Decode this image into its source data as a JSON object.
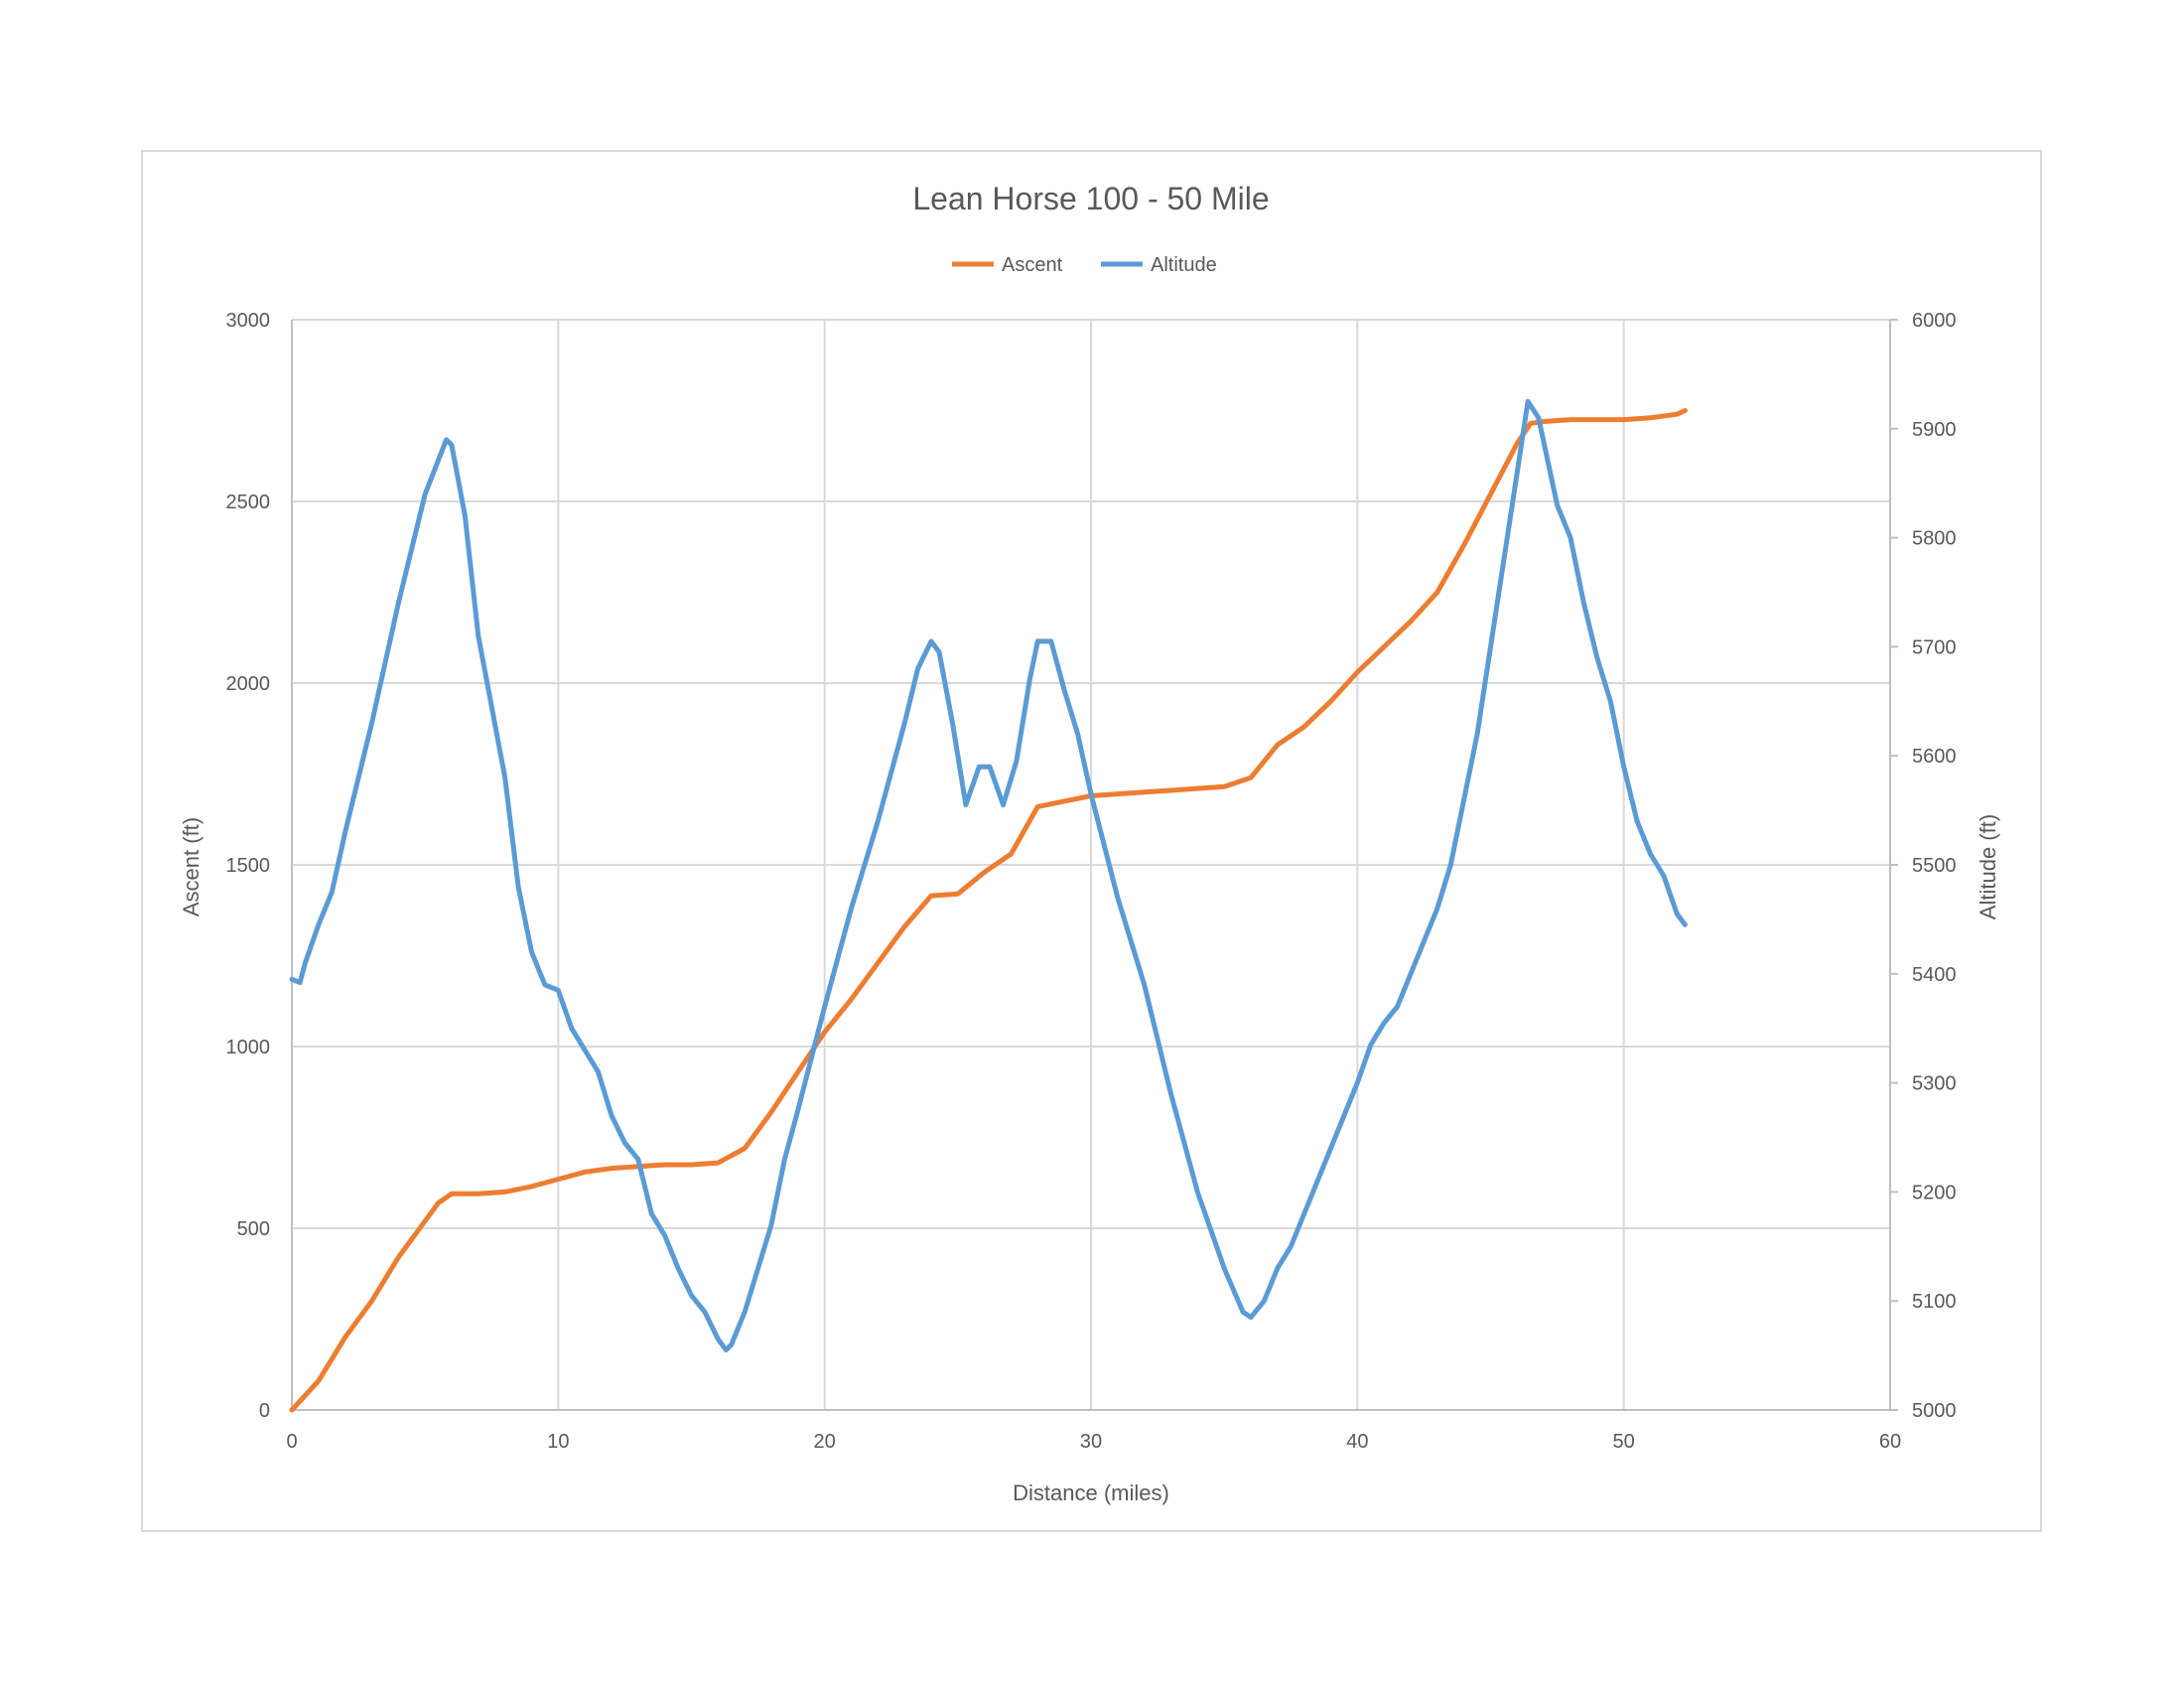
{
  "chart_data": {
    "type": "line",
    "title": "Lean Horse 100 - 50 Mile",
    "xlabel": "Distance (miles)",
    "ylabel_left": "Ascent (ft)",
    "ylabel_right": "Altitude (ft)",
    "xlim": [
      0,
      60
    ],
    "ylim_left": [
      0,
      3000
    ],
    "ylim_right": [
      5000,
      6000
    ],
    "x_ticks": [
      "0",
      "10",
      "20",
      "30",
      "40",
      "50",
      "60"
    ],
    "y_left_ticks": [
      "0",
      "500",
      "1000",
      "1500",
      "2000",
      "2500",
      "3000"
    ],
    "y_right_ticks": [
      "5000",
      "5100",
      "5200",
      "5300",
      "5400",
      "5500",
      "5600",
      "5700",
      "5800",
      "5900",
      "6000"
    ],
    "grid": true,
    "legend_position": "top-center",
    "series": [
      {
        "name": "Ascent",
        "axis": "left",
        "color": "#ed7d31",
        "points": [
          [
            0,
            0
          ],
          [
            0.5,
            40
          ],
          [
            1,
            80
          ],
          [
            2,
            200
          ],
          [
            3,
            300
          ],
          [
            4,
            420
          ],
          [
            5,
            520
          ],
          [
            5.5,
            570
          ],
          [
            6,
            595
          ],
          [
            7,
            595
          ],
          [
            8,
            600
          ],
          [
            9,
            615
          ],
          [
            10,
            635
          ],
          [
            11,
            655
          ],
          [
            12,
            665
          ],
          [
            13,
            670
          ],
          [
            14,
            675
          ],
          [
            15,
            675
          ],
          [
            16,
            680
          ],
          [
            17,
            720
          ],
          [
            18,
            820
          ],
          [
            19,
            930
          ],
          [
            20,
            1040
          ],
          [
            21,
            1130
          ],
          [
            22,
            1230
          ],
          [
            23,
            1330
          ],
          [
            24,
            1415
          ],
          [
            25,
            1420
          ],
          [
            26,
            1480
          ],
          [
            27,
            1530
          ],
          [
            28,
            1660
          ],
          [
            29,
            1675
          ],
          [
            30,
            1690
          ],
          [
            31,
            1695
          ],
          [
            32,
            1700
          ],
          [
            33,
            1705
          ],
          [
            34,
            1710
          ],
          [
            35,
            1715
          ],
          [
            36,
            1740
          ],
          [
            37,
            1830
          ],
          [
            38,
            1880
          ],
          [
            39,
            1950
          ],
          [
            40,
            2030
          ],
          [
            41,
            2100
          ],
          [
            42,
            2170
          ],
          [
            43,
            2250
          ],
          [
            44,
            2380
          ],
          [
            45,
            2520
          ],
          [
            46,
            2660
          ],
          [
            46.5,
            2715
          ],
          [
            47,
            2720
          ],
          [
            48,
            2725
          ],
          [
            49,
            2725
          ],
          [
            50,
            2725
          ],
          [
            51,
            2730
          ],
          [
            52,
            2740
          ],
          [
            52.3,
            2750
          ]
        ]
      },
      {
        "name": "Altitude",
        "axis": "right",
        "color": "#5b9bd5",
        "points": [
          [
            0,
            5395
          ],
          [
            0.3,
            5392
          ],
          [
            0.5,
            5410
          ],
          [
            1,
            5445
          ],
          [
            1.5,
            5475
          ],
          [
            2,
            5530
          ],
          [
            3,
            5630
          ],
          [
            4,
            5740
          ],
          [
            5,
            5840
          ],
          [
            5.8,
            5890
          ],
          [
            6,
            5885
          ],
          [
            6.5,
            5820
          ],
          [
            7,
            5710
          ],
          [
            8,
            5580
          ],
          [
            8.5,
            5480
          ],
          [
            9,
            5420
          ],
          [
            9.5,
            5390
          ],
          [
            10,
            5385
          ],
          [
            10.5,
            5350
          ],
          [
            11,
            5330
          ],
          [
            11.5,
            5310
          ],
          [
            12,
            5270
          ],
          [
            12.5,
            5245
          ],
          [
            13,
            5230
          ],
          [
            13.5,
            5180
          ],
          [
            14,
            5160
          ],
          [
            14.5,
            5130
          ],
          [
            15,
            5105
          ],
          [
            15.5,
            5090
          ],
          [
            16,
            5065
          ],
          [
            16.3,
            5055
          ],
          [
            16.5,
            5060
          ],
          [
            17,
            5090
          ],
          [
            17.5,
            5130
          ],
          [
            18,
            5170
          ],
          [
            18.5,
            5230
          ],
          [
            19,
            5275
          ],
          [
            20,
            5370
          ],
          [
            21,
            5460
          ],
          [
            22,
            5540
          ],
          [
            23,
            5630
          ],
          [
            23.5,
            5680
          ],
          [
            24,
            5705
          ],
          [
            24.3,
            5695
          ],
          [
            24.8,
            5630
          ],
          [
            25.3,
            5555
          ],
          [
            25.8,
            5590
          ],
          [
            26.2,
            5590
          ],
          [
            26.7,
            5555
          ],
          [
            27.2,
            5595
          ],
          [
            27.7,
            5670
          ],
          [
            28,
            5705
          ],
          [
            28.5,
            5705
          ],
          [
            29,
            5660
          ],
          [
            29.5,
            5620
          ],
          [
            30,
            5565
          ],
          [
            31,
            5470
          ],
          [
            32,
            5390
          ],
          [
            33,
            5290
          ],
          [
            34,
            5200
          ],
          [
            35,
            5130
          ],
          [
            35.7,
            5090
          ],
          [
            36,
            5085
          ],
          [
            36.5,
            5100
          ],
          [
            37,
            5130
          ],
          [
            37.5,
            5150
          ],
          [
            38,
            5180
          ],
          [
            38.5,
            5210
          ],
          [
            39,
            5240
          ],
          [
            39.5,
            5270
          ],
          [
            40,
            5300
          ],
          [
            40.5,
            5335
          ],
          [
            41,
            5355
          ],
          [
            41.5,
            5370
          ],
          [
            42,
            5400
          ],
          [
            42.5,
            5430
          ],
          [
            43,
            5460
          ],
          [
            43.5,
            5500
          ],
          [
            44,
            5560
          ],
          [
            44.5,
            5620
          ],
          [
            45,
            5700
          ],
          [
            45.5,
            5780
          ],
          [
            46,
            5860
          ],
          [
            46.4,
            5925
          ],
          [
            46.8,
            5910
          ],
          [
            47.5,
            5830
          ],
          [
            48,
            5800
          ],
          [
            48.5,
            5740
          ],
          [
            49,
            5690
          ],
          [
            49.5,
            5650
          ],
          [
            50,
            5590
          ],
          [
            50.5,
            5540
          ],
          [
            51,
            5510
          ],
          [
            51.5,
            5490
          ],
          [
            52,
            5455
          ],
          [
            52.3,
            5445
          ]
        ]
      }
    ]
  }
}
